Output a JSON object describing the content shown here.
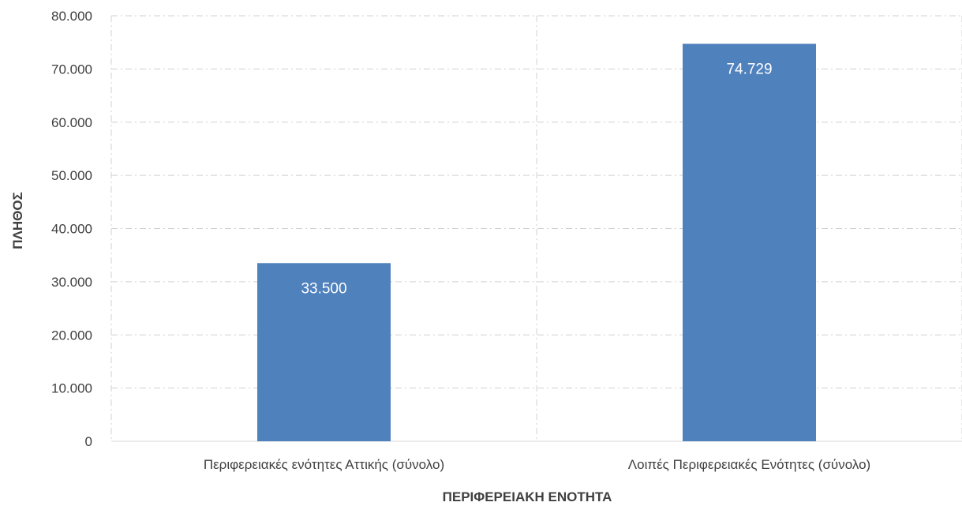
{
  "chart_data": {
    "type": "bar",
    "categories": [
      "Περιφερειακές ενότητες Αττικής (σύνολο)",
      "Λοιπές Περιφερειακές Ενότητες (σύνολο)"
    ],
    "values": [
      33500,
      74729
    ],
    "data_labels": [
      "33.500",
      "74.729"
    ],
    "xlabel": "ΠΕΡΙΦΕΡΕΙΑΚΗ ΕΝΟΤΗΤΑ",
    "ylabel": "ΠΛΗΘΟΣ",
    "ylim": [
      0,
      80000
    ],
    "yticks": [
      0,
      10000,
      20000,
      30000,
      40000,
      50000,
      60000,
      70000,
      80000
    ],
    "ytick_labels": [
      "0",
      "10.000",
      "20.000",
      "30.000",
      "40.000",
      "50.000",
      "60.000",
      "70.000",
      "80.000"
    ],
    "grid": true,
    "bar_color": "#4f81bd",
    "grid_color": "#d0d0d0"
  }
}
